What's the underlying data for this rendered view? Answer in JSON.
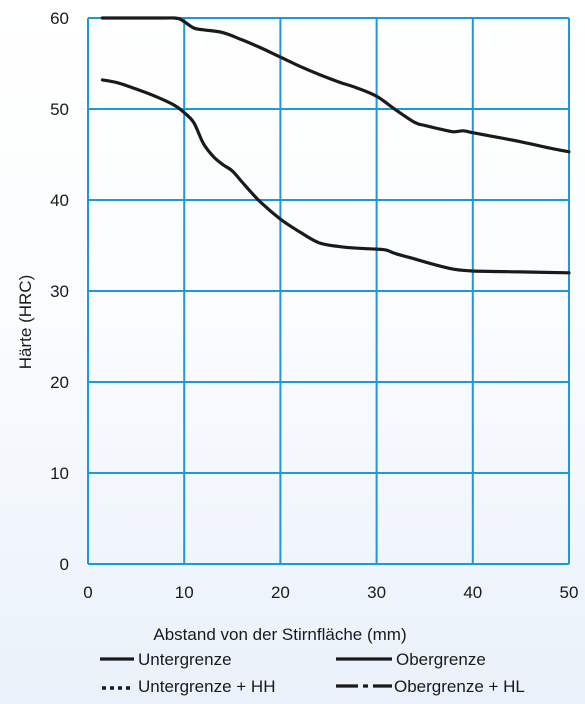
{
  "chart_data": {
    "type": "line",
    "title": "",
    "xlabel": "Abstand von der Stirnfläche (mm)",
    "ylabel": "Härte (HRC)",
    "xlim": [
      0,
      50
    ],
    "ylim": [
      0,
      60
    ],
    "x_ticks": [
      0,
      10,
      20,
      30,
      40,
      50
    ],
    "y_ticks": [
      0,
      10,
      20,
      30,
      40,
      50,
      60
    ],
    "grid": true,
    "grid_color": "#1a9ad6",
    "line_color": "#1a1a1a",
    "series": [
      {
        "name": "Untergrenze",
        "x": [
          1.5,
          3,
          5,
          7,
          9,
          10,
          11,
          12,
          13,
          14,
          15,
          16,
          17,
          18,
          20,
          22,
          24,
          26,
          28,
          30,
          31,
          32,
          34,
          36,
          38,
          40,
          45,
          50
        ],
        "y": [
          53.2,
          52.9,
          52.2,
          51.4,
          50.4,
          49.6,
          48.5,
          46.2,
          44.8,
          43.9,
          43.2,
          42.0,
          40.8,
          39.7,
          37.9,
          36.5,
          35.3,
          34.9,
          34.7,
          34.6,
          34.5,
          34.1,
          33.5,
          32.9,
          32.4,
          32.2,
          32.1,
          32.0
        ],
        "style": "solid"
      },
      {
        "name": "Obergrenze",
        "x": [
          1.5,
          4,
          6,
          8,
          9,
          9.5,
          10,
          11,
          12,
          14,
          16,
          18,
          20,
          22,
          24,
          26,
          28,
          30,
          32,
          34,
          35,
          37,
          38,
          39,
          40,
          42,
          45,
          48,
          50
        ],
        "y": [
          60.0,
          60.0,
          60.0,
          60.0,
          60.0,
          59.9,
          59.6,
          58.9,
          58.7,
          58.4,
          57.6,
          56.7,
          55.7,
          54.7,
          53.8,
          53.0,
          52.3,
          51.4,
          49.9,
          48.5,
          48.2,
          47.7,
          47.5,
          47.6,
          47.4,
          47.0,
          46.4,
          45.7,
          45.3
        ],
        "style": "solid"
      }
    ],
    "legend": {
      "placement": "bottom",
      "entries": [
        {
          "label": "Untergrenze",
          "style": "solid"
        },
        {
          "label": "Obergrenze",
          "style": "solid"
        },
        {
          "label": "Untergrenze + HH",
          "style": "dotted"
        },
        {
          "label": "Obergrenze + HL",
          "style": "dashdot"
        }
      ]
    }
  }
}
